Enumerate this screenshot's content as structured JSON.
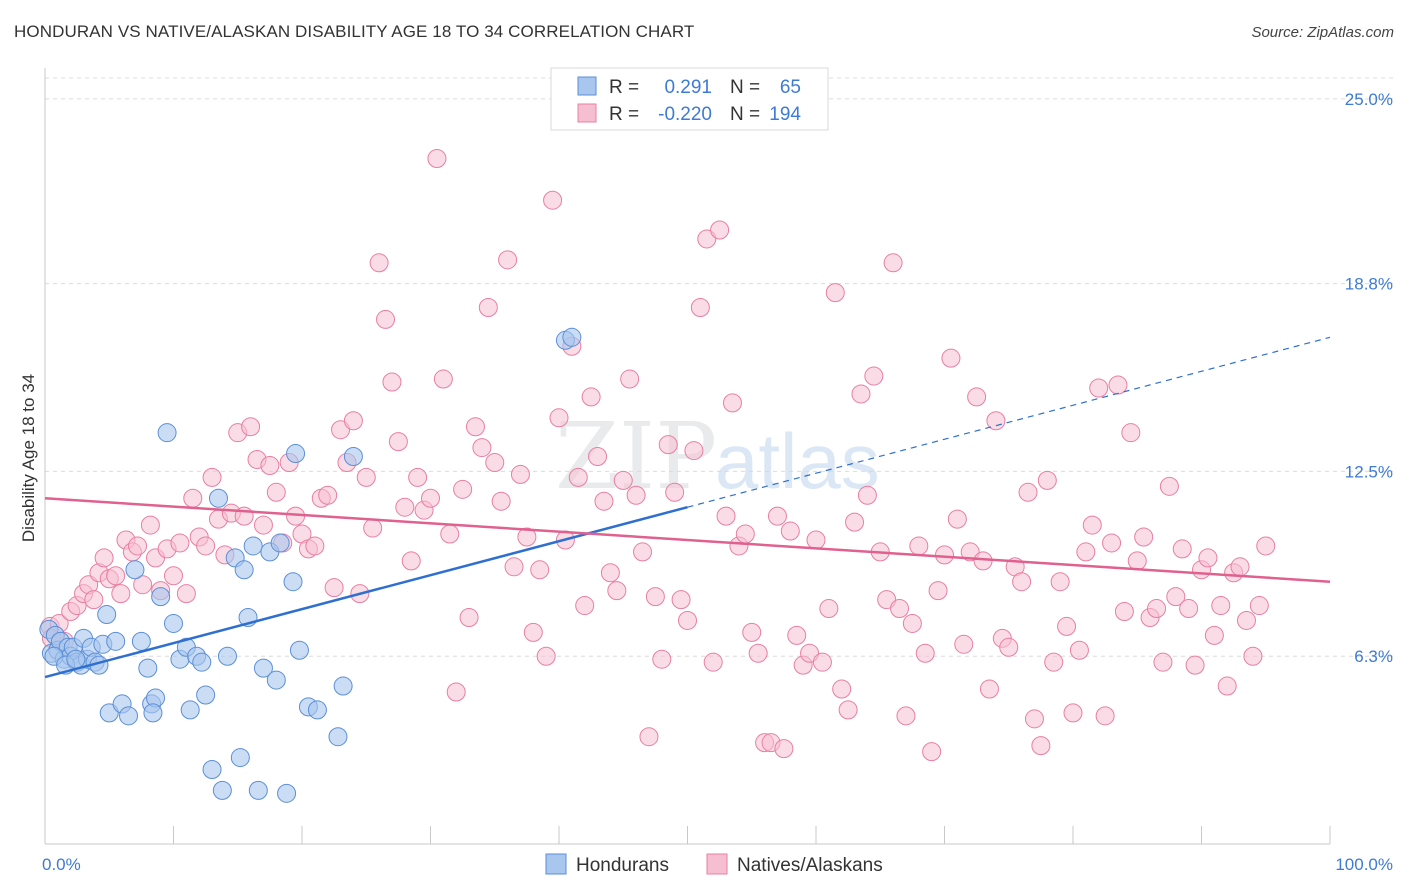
{
  "title": "HONDURAN VS NATIVE/ALASKAN DISABILITY AGE 18 TO 34 CORRELATION CHART",
  "source": "Source: ZipAtlas.com",
  "watermark": {
    "zip": "ZIP",
    "atlas": "atlas"
  },
  "colors": {
    "blue": "#5b8fd6",
    "blue_fill": "#a9c6ef",
    "blue_line": "#2f6fd0",
    "pink": "#e87fa3",
    "pink_fill": "#f6bfd1",
    "pink_line": "#e0608e",
    "tick": "#3d7bd4"
  },
  "legend": {
    "rows": [
      {
        "r_label": "R =",
        "r_value": "0.291",
        "n_label": "N =",
        "n_value": "65"
      },
      {
        "r_label": "R =",
        "r_value": "-0.220",
        "n_label": "N =",
        "n_value": "194"
      }
    ]
  },
  "bottom_legend": [
    "Hondurans",
    "Natives/Alaskans"
  ],
  "chart_data": {
    "type": "scatter",
    "title": "HONDURAN VS NATIVE/ALASKAN DISABILITY AGE 18 TO 34 CORRELATION CHART",
    "ylabel": "Disability Age 18 to 34",
    "xlabel": "",
    "x_tick_labels": [
      "0.0%",
      "100.0%"
    ],
    "y_tick_labels": [
      "6.3%",
      "12.5%",
      "18.8%",
      "25.0%"
    ],
    "y_ticks": [
      6.3,
      12.5,
      18.8,
      25.0
    ],
    "xlim": [
      0,
      100
    ],
    "ylim": [
      0,
      25.7
    ],
    "grid": true,
    "legend_position": "top-center",
    "series": [
      {
        "name": "Hondurans",
        "r": 0.291,
        "n": 65,
        "trend": {
          "x0": 0,
          "y0": 5.6,
          "x1": 50,
          "y1": 11.3,
          "dash_to_x": 100,
          "dash_to_y": 17.0
        },
        "points": [
          [
            0.3,
            7.2
          ],
          [
            0.5,
            6.4
          ],
          [
            0.8,
            7.0
          ],
          [
            1.0,
            6.5
          ],
          [
            1.2,
            6.8
          ],
          [
            1.5,
            6.2
          ],
          [
            1.8,
            6.6
          ],
          [
            2.0,
            6.3
          ],
          [
            2.2,
            6.6
          ],
          [
            2.5,
            6.1
          ],
          [
            2.8,
            6.0
          ],
          [
            3.0,
            6.9
          ],
          [
            3.3,
            6.2
          ],
          [
            3.6,
            6.6
          ],
          [
            3.9,
            6.1
          ],
          [
            4.2,
            6.0
          ],
          [
            4.5,
            6.7
          ],
          [
            4.8,
            7.7
          ],
          [
            5.0,
            4.4
          ],
          [
            5.5,
            6.8
          ],
          [
            6.0,
            4.7
          ],
          [
            6.5,
            4.3
          ],
          [
            7.0,
            9.2
          ],
          [
            7.5,
            6.8
          ],
          [
            8.0,
            5.9
          ],
          [
            8.3,
            4.7
          ],
          [
            8.6,
            4.9
          ],
          [
            8.4,
            4.4
          ],
          [
            9.0,
            8.3
          ],
          [
            9.5,
            13.8
          ],
          [
            10.0,
            7.4
          ],
          [
            10.5,
            6.2
          ],
          [
            11.0,
            6.6
          ],
          [
            11.3,
            4.5
          ],
          [
            11.8,
            6.3
          ],
          [
            12.2,
            6.1
          ],
          [
            12.5,
            5.0
          ],
          [
            13.0,
            2.5
          ],
          [
            13.5,
            11.6
          ],
          [
            13.8,
            1.8
          ],
          [
            14.2,
            6.3
          ],
          [
            14.8,
            9.6
          ],
          [
            15.2,
            2.9
          ],
          [
            15.5,
            9.2
          ],
          [
            15.8,
            7.6
          ],
          [
            16.2,
            10.0
          ],
          [
            16.6,
            1.8
          ],
          [
            17.0,
            5.9
          ],
          [
            17.5,
            9.8
          ],
          [
            18.3,
            10.1
          ],
          [
            18.8,
            1.7
          ],
          [
            19.3,
            8.8
          ],
          [
            19.5,
            13.1
          ],
          [
            18.0,
            5.5
          ],
          [
            19.8,
            6.5
          ],
          [
            20.5,
            4.6
          ],
          [
            21.2,
            4.5
          ],
          [
            22.8,
            3.6
          ],
          [
            23.2,
            5.3
          ],
          [
            24.0,
            13.0
          ],
          [
            40.5,
            16.9
          ],
          [
            41.0,
            17.0
          ],
          [
            0.7,
            6.3
          ],
          [
            1.6,
            6.0
          ],
          [
            2.4,
            6.2
          ]
        ]
      },
      {
        "name": "Natives/Alaskans",
        "r": -0.22,
        "n": 194,
        "trend": {
          "x0": 0,
          "y0": 11.6,
          "x1": 100,
          "y1": 8.8
        },
        "points": [
          [
            0.4,
            7.3
          ],
          [
            0.8,
            7.0
          ],
          [
            1.1,
            7.4
          ],
          [
            1.5,
            6.8
          ],
          [
            2.0,
            7.8
          ],
          [
            2.5,
            8.0
          ],
          [
            3.0,
            8.4
          ],
          [
            3.4,
            8.7
          ],
          [
            3.8,
            8.2
          ],
          [
            4.2,
            9.1
          ],
          [
            4.6,
            9.6
          ],
          [
            5.0,
            8.9
          ],
          [
            5.5,
            9.0
          ],
          [
            5.9,
            8.4
          ],
          [
            6.3,
            10.2
          ],
          [
            6.8,
            9.8
          ],
          [
            7.2,
            10.0
          ],
          [
            7.6,
            8.7
          ],
          [
            8.2,
            10.7
          ],
          [
            8.6,
            9.6
          ],
          [
            9.0,
            8.5
          ],
          [
            9.5,
            9.9
          ],
          [
            10.0,
            9.0
          ],
          [
            10.5,
            10.1
          ],
          [
            11.0,
            8.4
          ],
          [
            11.5,
            11.6
          ],
          [
            12.0,
            10.3
          ],
          [
            12.5,
            10.0
          ],
          [
            13.0,
            12.3
          ],
          [
            13.5,
            10.9
          ],
          [
            14.0,
            9.7
          ],
          [
            14.5,
            11.1
          ],
          [
            15.0,
            13.8
          ],
          [
            15.5,
            11.0
          ],
          [
            16.0,
            14.0
          ],
          [
            16.5,
            12.9
          ],
          [
            17.0,
            10.7
          ],
          [
            17.5,
            12.7
          ],
          [
            18.0,
            11.8
          ],
          [
            18.5,
            10.1
          ],
          [
            19.0,
            12.8
          ],
          [
            19.5,
            11.0
          ],
          [
            20.0,
            10.4
          ],
          [
            20.5,
            9.9
          ],
          [
            21.0,
            10.0
          ],
          [
            21.5,
            11.6
          ],
          [
            22.0,
            11.7
          ],
          [
            22.5,
            8.6
          ],
          [
            23.0,
            13.9
          ],
          [
            23.5,
            12.8
          ],
          [
            24.0,
            14.2
          ],
          [
            24.5,
            8.4
          ],
          [
            25.0,
            12.3
          ],
          [
            25.5,
            10.6
          ],
          [
            26.0,
            19.5
          ],
          [
            26.5,
            17.6
          ],
          [
            27.0,
            15.5
          ],
          [
            27.5,
            13.5
          ],
          [
            28.0,
            11.3
          ],
          [
            28.5,
            9.5
          ],
          [
            29.0,
            12.3
          ],
          [
            29.5,
            11.2
          ],
          [
            30.0,
            11.6
          ],
          [
            30.5,
            23.0
          ],
          [
            31.0,
            15.6
          ],
          [
            31.5,
            10.4
          ],
          [
            32.0,
            5.1
          ],
          [
            32.5,
            11.9
          ],
          [
            33.0,
            7.6
          ],
          [
            33.5,
            14.0
          ],
          [
            34.0,
            13.3
          ],
          [
            34.5,
            18.0
          ],
          [
            35.0,
            12.8
          ],
          [
            35.5,
            11.5
          ],
          [
            36.0,
            19.6
          ],
          [
            36.5,
            9.3
          ],
          [
            37.0,
            12.4
          ],
          [
            37.5,
            10.3
          ],
          [
            38.0,
            7.1
          ],
          [
            38.5,
            9.2
          ],
          [
            39.0,
            6.3
          ],
          [
            39.5,
            21.6
          ],
          [
            40.0,
            14.3
          ],
          [
            40.5,
            10.2
          ],
          [
            41.0,
            16.7
          ],
          [
            41.5,
            12.3
          ],
          [
            42.0,
            8.0
          ],
          [
            42.5,
            15.0
          ],
          [
            43.0,
            13.0
          ],
          [
            43.5,
            11.5
          ],
          [
            44.0,
            9.1
          ],
          [
            44.5,
            8.5
          ],
          [
            45.0,
            12.2
          ],
          [
            45.5,
            15.6
          ],
          [
            46.0,
            11.7
          ],
          [
            46.5,
            9.8
          ],
          [
            47.0,
            3.6
          ],
          [
            47.5,
            8.3
          ],
          [
            48.0,
            6.2
          ],
          [
            48.5,
            13.4
          ],
          [
            49.0,
            11.8
          ],
          [
            49.5,
            8.2
          ],
          [
            50.0,
            7.5
          ],
          [
            50.5,
            13.2
          ],
          [
            51.0,
            18.0
          ],
          [
            51.5,
            20.3
          ],
          [
            52.0,
            6.1
          ],
          [
            52.5,
            20.6
          ],
          [
            53.0,
            11.0
          ],
          [
            53.5,
            14.8
          ],
          [
            54.0,
            10.0
          ],
          [
            54.5,
            10.4
          ],
          [
            55.0,
            7.1
          ],
          [
            55.5,
            6.4
          ],
          [
            56.0,
            3.4
          ],
          [
            56.5,
            3.4
          ],
          [
            57.0,
            11.0
          ],
          [
            57.5,
            3.2
          ],
          [
            58.0,
            10.5
          ],
          [
            58.5,
            7.0
          ],
          [
            59.0,
            6.0
          ],
          [
            59.5,
            6.4
          ],
          [
            60.0,
            10.2
          ],
          [
            60.5,
            6.1
          ],
          [
            61.0,
            7.9
          ],
          [
            61.5,
            18.5
          ],
          [
            62.0,
            5.2
          ],
          [
            62.5,
            4.5
          ],
          [
            63.0,
            10.8
          ],
          [
            63.5,
            15.1
          ],
          [
            64.0,
            11.7
          ],
          [
            64.5,
            15.7
          ],
          [
            65.0,
            9.8
          ],
          [
            65.5,
            8.2
          ],
          [
            66.0,
            19.5
          ],
          [
            66.5,
            7.9
          ],
          [
            67.0,
            4.3
          ],
          [
            67.5,
            7.4
          ],
          [
            68.0,
            10.0
          ],
          [
            68.5,
            6.4
          ],
          [
            69.0,
            3.1
          ],
          [
            69.5,
            8.5
          ],
          [
            70.0,
            9.7
          ],
          [
            70.5,
            16.3
          ],
          [
            71.0,
            10.9
          ],
          [
            71.5,
            6.7
          ],
          [
            72.0,
            9.8
          ],
          [
            72.5,
            15.0
          ],
          [
            73.0,
            9.5
          ],
          [
            73.5,
            5.2
          ],
          [
            74.0,
            14.2
          ],
          [
            74.5,
            6.9
          ],
          [
            75.0,
            6.6
          ],
          [
            75.5,
            9.3
          ],
          [
            76.0,
            8.8
          ],
          [
            76.5,
            11.8
          ],
          [
            77.0,
            4.2
          ],
          [
            77.5,
            3.3
          ],
          [
            78.0,
            12.2
          ],
          [
            78.5,
            6.1
          ],
          [
            79.0,
            8.8
          ],
          [
            79.5,
            7.3
          ],
          [
            80.0,
            4.4
          ],
          [
            80.5,
            6.5
          ],
          [
            81.0,
            9.8
          ],
          [
            81.5,
            10.7
          ],
          [
            82.0,
            15.3
          ],
          [
            82.5,
            4.3
          ],
          [
            83.0,
            10.1
          ],
          [
            83.5,
            15.4
          ],
          [
            84.0,
            7.8
          ],
          [
            84.5,
            13.8
          ],
          [
            85.0,
            9.5
          ],
          [
            85.5,
            10.3
          ],
          [
            86.0,
            7.6
          ],
          [
            86.5,
            7.9
          ],
          [
            87.0,
            6.1
          ],
          [
            87.5,
            12.0
          ],
          [
            88.0,
            8.3
          ],
          [
            88.5,
            9.9
          ],
          [
            89.0,
            7.9
          ],
          [
            89.5,
            6.0
          ],
          [
            90.0,
            9.2
          ],
          [
            90.5,
            9.6
          ],
          [
            91.0,
            7.0
          ],
          [
            91.5,
            8.0
          ],
          [
            92.0,
            5.3
          ],
          [
            92.5,
            9.1
          ],
          [
            93.0,
            9.3
          ],
          [
            93.5,
            7.5
          ],
          [
            94.0,
            6.3
          ],
          [
            94.5,
            8.0
          ],
          [
            95.0,
            10.0
          ],
          [
            0.5,
            6.9
          ]
        ]
      }
    ]
  }
}
